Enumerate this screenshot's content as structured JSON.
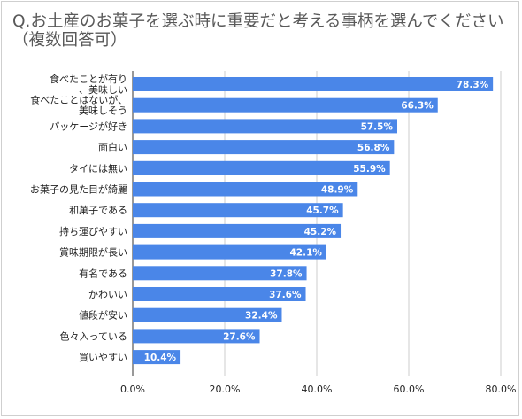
{
  "chart_data": {
    "type": "bar",
    "orientation": "horizontal",
    "title": "Q.お土産のお菓子を選ぶ時に重要だと考える事柄を選んでください（複数回答可）",
    "categories": [
      "食べたことが有り、美味しい",
      "食べたことはないが、美味しそう",
      "パッケージが好き",
      "面白い",
      "タイには無い",
      "お菓子の見た目が綺麗",
      "和菓子である",
      "持ち運びやすい",
      "賞味期限が長い",
      "有名である",
      "かわいい",
      "値段が安い",
      "色々入っている",
      "買いやすい"
    ],
    "values": [
      78.3,
      66.3,
      57.5,
      56.8,
      55.9,
      48.9,
      45.7,
      45.2,
      42.1,
      37.8,
      37.6,
      32.4,
      27.6,
      10.4
    ],
    "value_labels": [
      "78.3%",
      "66.3%",
      "57.5%",
      "56.8%",
      "55.9%",
      "48.9%",
      "45.7%",
      "45.2%",
      "42.1%",
      "37.8%",
      "37.6%",
      "32.4%",
      "27.6%",
      "10.4%"
    ],
    "xlim": [
      0,
      80
    ],
    "xticks": [
      0,
      20,
      40,
      60,
      80
    ],
    "xtick_labels": [
      "0.0%",
      "20.0%",
      "40.0%",
      "60.0%",
      "80.0%"
    ],
    "xlabel": "",
    "ylabel": "",
    "grid": true,
    "bar_color": "#4a86e8",
    "grid_color": "#cccccc"
  }
}
